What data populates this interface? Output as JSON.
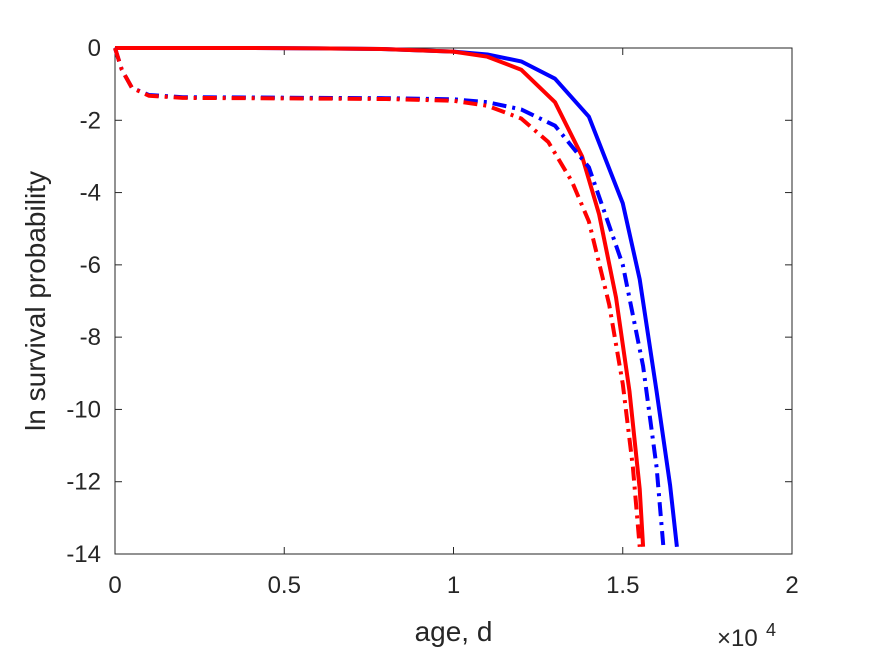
{
  "chart_data": {
    "type": "line",
    "title": "",
    "xlabel": "age, d",
    "ylabel": "ln survival probability",
    "x_exponent_base": "×10",
    "x_exponent_power": "4",
    "xlim": [
      0,
      20000
    ],
    "ylim": [
      -14,
      0
    ],
    "xticks": [
      0,
      5000,
      10000,
      15000,
      20000
    ],
    "xtick_labels": [
      "0",
      "0.5",
      "1",
      "1.5",
      "2"
    ],
    "yticks": [
      0,
      -2,
      -4,
      -6,
      -8,
      -10,
      -12,
      -14
    ],
    "ytick_labels": [
      "0",
      "-2",
      "-4",
      "-6",
      "-8",
      "-10",
      "-12",
      "-14"
    ],
    "grid": false,
    "legend": "none",
    "series": [
      {
        "color": "#0000ff",
        "style": "solid",
        "x": [
          0,
          2000,
          4000,
          6000,
          8000,
          10000,
          11000,
          12000,
          13000,
          14000,
          15000,
          15500,
          16000,
          16400,
          16600
        ],
        "y": [
          0,
          0,
          0,
          -0.01,
          -0.03,
          -0.1,
          -0.18,
          -0.37,
          -0.85,
          -1.9,
          -4.3,
          -6.4,
          -9.5,
          -12.1,
          -13.8
        ]
      },
      {
        "color": "#ff0000",
        "style": "solid",
        "x": [
          0,
          2000,
          4000,
          6000,
          8000,
          10000,
          11000,
          12000,
          13000,
          13800,
          14300,
          14800,
          15200,
          15500,
          15600
        ],
        "y": [
          0,
          0,
          0,
          -0.01,
          -0.03,
          -0.1,
          -0.24,
          -0.6,
          -1.5,
          -3.0,
          -4.6,
          -6.9,
          -9.5,
          -12.2,
          -13.8
        ]
      },
      {
        "color": "#0000ff",
        "style": "dashdot",
        "x": [
          0,
          200,
          500,
          1000,
          2000,
          4000,
          6000,
          8000,
          10000,
          11000,
          12000,
          13000,
          14000,
          15000,
          15600,
          16000,
          16200
        ],
        "y": [
          0,
          -0.6,
          -1.1,
          -1.3,
          -1.36,
          -1.37,
          -1.38,
          -1.39,
          -1.42,
          -1.5,
          -1.7,
          -2.15,
          -3.3,
          -6.0,
          -8.8,
          -11.6,
          -13.8
        ]
      },
      {
        "color": "#ff0000",
        "style": "dashdot",
        "x": [
          0,
          200,
          500,
          1000,
          2000,
          4000,
          6000,
          8000,
          10000,
          11000,
          12000,
          12800,
          13500,
          14000,
          14600,
          15000,
          15300,
          15500
        ],
        "y": [
          0,
          -0.6,
          -1.1,
          -1.32,
          -1.38,
          -1.39,
          -1.4,
          -1.41,
          -1.46,
          -1.6,
          -1.95,
          -2.6,
          -3.7,
          -4.8,
          -7.1,
          -9.3,
          -11.6,
          -13.8
        ]
      }
    ]
  }
}
